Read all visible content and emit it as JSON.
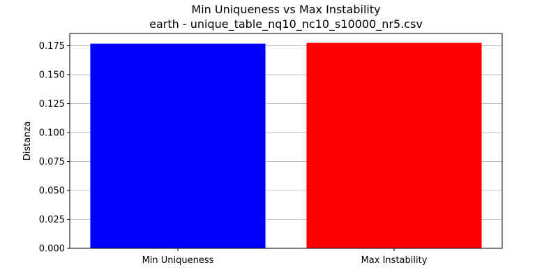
{
  "chart_data": {
    "type": "bar",
    "title": "Min Uniqueness vs Max Instability",
    "subtitle": "earth - unique_table_nq10_nc10_s10000_nr5.csv",
    "xlabel": "",
    "ylabel": "Distanza",
    "categories": [
      "Min Uniqueness",
      "Max Instability"
    ],
    "values": [
      0.1768,
      0.1775
    ],
    "colors": [
      "#0000ff",
      "#ff0000"
    ],
    "ylim": [
      0,
      0.1856
    ],
    "yticks": [
      0.0,
      0.025,
      0.05,
      0.075,
      0.1,
      0.125,
      0.15,
      0.175
    ],
    "ytick_labels": [
      "0.000",
      "0.025",
      "0.050",
      "0.075",
      "0.100",
      "0.125",
      "0.150",
      "0.175"
    ],
    "grid": "y",
    "grid_color": "#b0b0b0"
  }
}
